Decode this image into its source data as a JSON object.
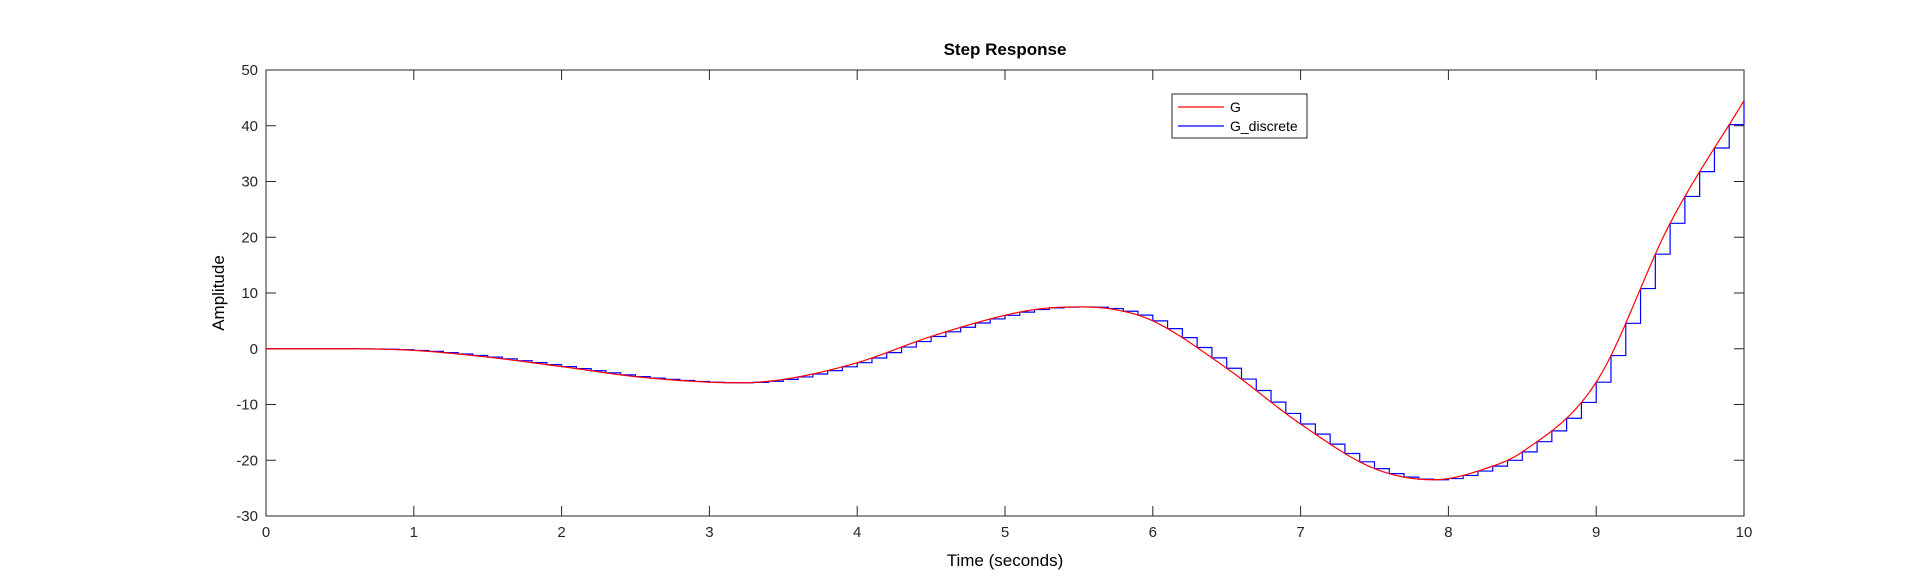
{
  "chart_data": {
    "type": "line",
    "title": "Step Response",
    "xlabel": "Time (seconds)",
    "ylabel": "Amplitude",
    "xlim": [
      0,
      10
    ],
    "ylim": [
      -30,
      50
    ],
    "xticks": [
      "0",
      "1",
      "2",
      "3",
      "4",
      "5",
      "6",
      "7",
      "8",
      "9",
      "10"
    ],
    "yticks": [
      "-30",
      "-20",
      "-10",
      "0",
      "10",
      "20",
      "30",
      "40",
      "50"
    ],
    "grid": false,
    "legend_position": "top-right",
    "series": [
      {
        "name": "G",
        "color": "#ff0000",
        "style": "continuous",
        "x": [
          0,
          0.5,
          1,
          1.5,
          2,
          2.5,
          3,
          3.2,
          3.5,
          4,
          4.5,
          5,
          5.25,
          5.5,
          5.75,
          6,
          6.5,
          7,
          7.5,
          7.9,
          8.25,
          8.5,
          9,
          9.5,
          10
        ],
        "y": [
          0,
          0,
          -0.3,
          -1.5,
          -3.2,
          -5.0,
          -6.0,
          -6.1,
          -5.5,
          -2.5,
          2.2,
          6.0,
          7.2,
          7.5,
          7.0,
          5.0,
          -3.5,
          -13.5,
          -21.5,
          -23.5,
          -21.5,
          -18.5,
          -6.0,
          22.5,
          44.5
        ]
      },
      {
        "name": "G_discrete",
        "color": "#0000ff",
        "style": "stairs",
        "sample_time": 0.1,
        "x": [
          0,
          0.5,
          1,
          1.5,
          2,
          2.5,
          3,
          3.2,
          3.5,
          4,
          4.5,
          5,
          5.25,
          5.5,
          5.75,
          6,
          6.5,
          7,
          7.5,
          7.9,
          8.25,
          8.5,
          9,
          9.5,
          10
        ],
        "y": [
          0,
          0,
          -0.3,
          -1.5,
          -3.2,
          -5.0,
          -6.0,
          -6.1,
          -5.5,
          -2.5,
          2.2,
          6.0,
          7.2,
          7.5,
          7.0,
          5.0,
          -3.5,
          -13.5,
          -21.5,
          -23.5,
          -21.5,
          -18.5,
          -6.0,
          22.5,
          44.5
        ]
      }
    ]
  }
}
